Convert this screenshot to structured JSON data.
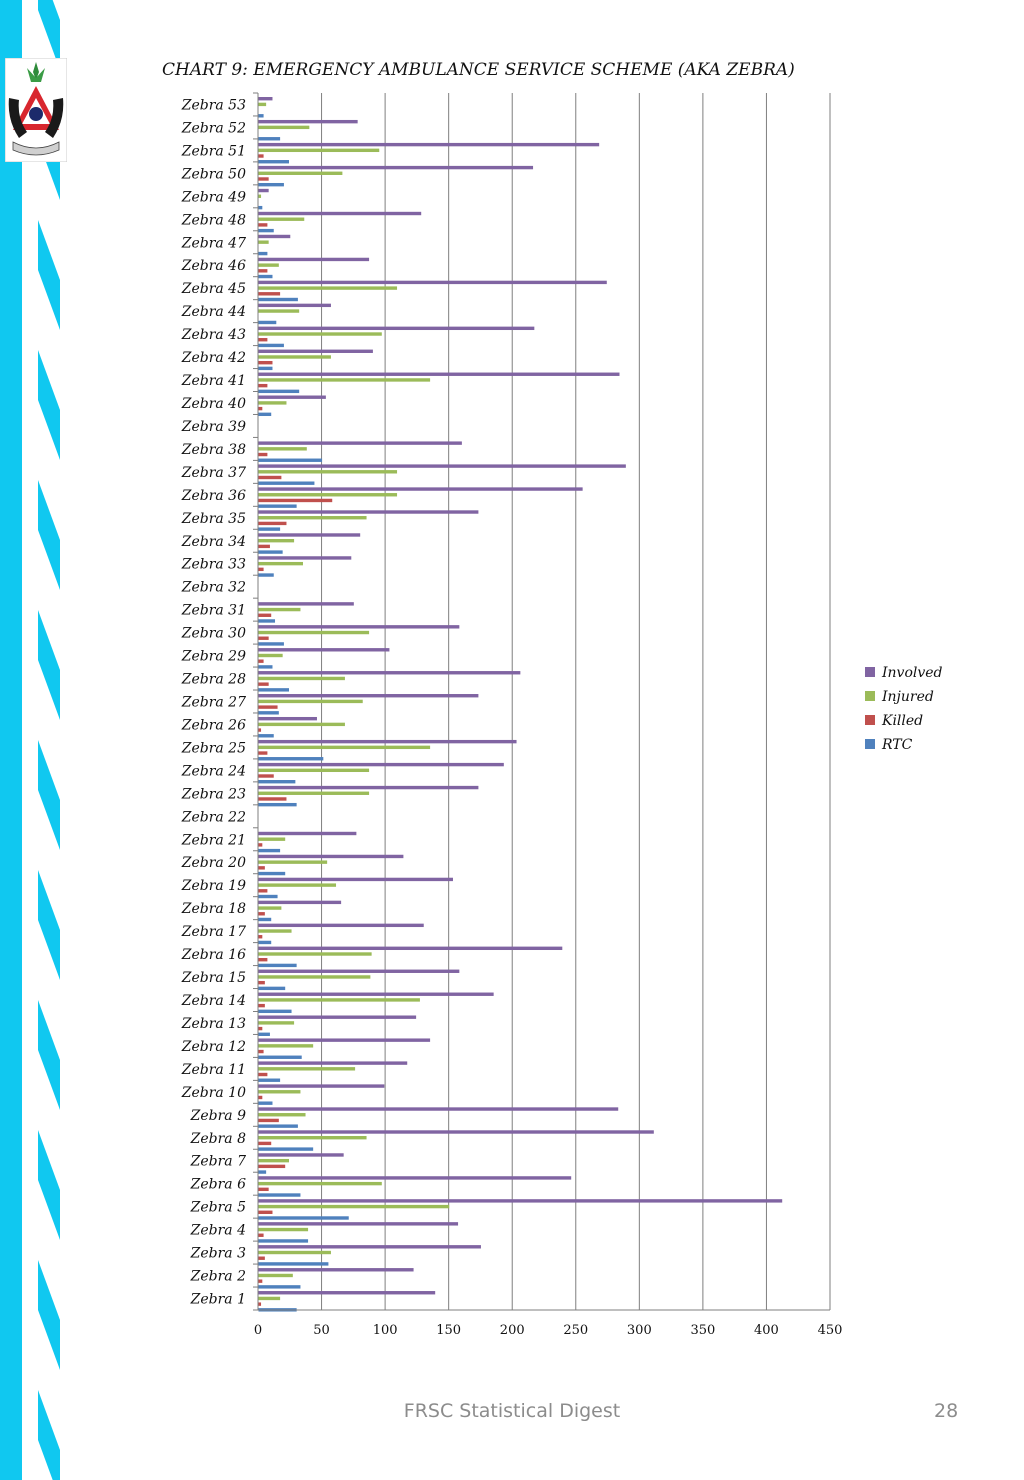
{
  "colors": {
    "stripe_cyan": "#10c8f0",
    "stripe_dark": "#1aa0d0",
    "involved": "#8064a2",
    "injured": "#9bbb59",
    "killed": "#c0504d",
    "rtc": "#4f81bd",
    "grid": "#7f7f7f"
  },
  "footer": {
    "title": "FRSC Statistical Digest",
    "page_number": "28"
  },
  "logo": {
    "icon": "frsc-logo-icon"
  },
  "chart_data": {
    "type": "bar",
    "orientation": "horizontal",
    "title": "CHART 9: EMERGENCY AMBULANCE SERVICE SCHEME (AKA ZEBRA)",
    "xlim": [
      0,
      450
    ],
    "xticks": [
      0,
      50,
      100,
      150,
      200,
      250,
      300,
      350,
      400,
      450
    ],
    "grid": true,
    "legend_position": "right",
    "categories": [
      "Zebra 1",
      "Zebra 2",
      "Zebra 3",
      "Zebra 4",
      "Zebra 5",
      "Zebra 6",
      "Zebra 7",
      "Zebra 8",
      "Zebra 9",
      "Zebra 10",
      "Zebra 11",
      "Zebra 12",
      "Zebra 13",
      "Zebra 14",
      "Zebra 15",
      "Zebra 16",
      "Zebra 17",
      "Zebra 18",
      "Zebra 19",
      "Zebra 20",
      "Zebra 21",
      "Zebra 22",
      "Zebra 23",
      "Zebra 24",
      "Zebra 25",
      "Zebra 26",
      "Zebra 27",
      "Zebra 28",
      "Zebra 29",
      "Zebra 30",
      "Zebra 31",
      "Zebra 32",
      "Zebra 33",
      "Zebra 34",
      "Zebra 35",
      "Zebra 36",
      "Zebra 37",
      "Zebra 38",
      "Zebra 39",
      "Zebra 40",
      "Zebra 41",
      "Zebra 42",
      "Zebra 43",
      "Zebra 44",
      "Zebra 45",
      "Zebra 46",
      "Zebra 47",
      "Zebra 48",
      "Zebra 49",
      "Zebra 50",
      "Zebra 51",
      "Zebra 52",
      "Zebra 53"
    ],
    "series": [
      {
        "name": "Involved",
        "values": [
          139,
          122,
          175,
          157,
          412,
          246,
          67,
          311,
          283,
          99,
          117,
          135,
          124,
          185,
          158,
          239,
          130,
          65,
          153,
          114,
          77,
          0,
          173,
          193,
          203,
          46,
          173,
          206,
          103,
          158,
          75,
          0,
          73,
          80,
          173,
          255,
          289,
          160,
          0,
          53,
          284,
          90,
          217,
          57,
          274,
          87,
          25,
          128,
          8,
          216,
          268,
          78,
          11
        ]
      },
      {
        "name": "Injured",
        "values": [
          17,
          27,
          57,
          39,
          150,
          97,
          24,
          85,
          37,
          33,
          76,
          43,
          28,
          127,
          88,
          89,
          26,
          18,
          61,
          54,
          21,
          0,
          87,
          87,
          135,
          68,
          82,
          68,
          19,
          87,
          33,
          0,
          35,
          28,
          85,
          109,
          109,
          38,
          0,
          22,
          135,
          57,
          97,
          32,
          109,
          16,
          8,
          36,
          2,
          66,
          95,
          40,
          6
        ]
      },
      {
        "name": "Killed",
        "values": [
          2,
          3,
          5,
          4,
          11,
          8,
          21,
          10,
          16,
          3,
          7,
          4,
          3,
          5,
          5,
          7,
          3,
          5,
          7,
          5,
          3,
          0,
          22,
          12,
          7,
          2,
          15,
          8,
          4,
          8,
          10,
          0,
          4,
          9,
          22,
          58,
          18,
          7,
          0,
          3,
          7,
          11,
          7,
          0,
          17,
          7,
          0,
          7,
          0,
          8,
          4,
          0,
          0
        ]
      },
      {
        "name": "RTC",
        "values": [
          30,
          33,
          55,
          39,
          71,
          33,
          6,
          43,
          31,
          11,
          17,
          34,
          9,
          26,
          21,
          30,
          10,
          10,
          15,
          21,
          17,
          0,
          30,
          29,
          51,
          12,
          16,
          24,
          11,
          20,
          13,
          0,
          12,
          19,
          17,
          30,
          44,
          50,
          0,
          10,
          32,
          11,
          20,
          14,
          31,
          11,
          7,
          12,
          3,
          20,
          24,
          17,
          4
        ]
      }
    ]
  }
}
